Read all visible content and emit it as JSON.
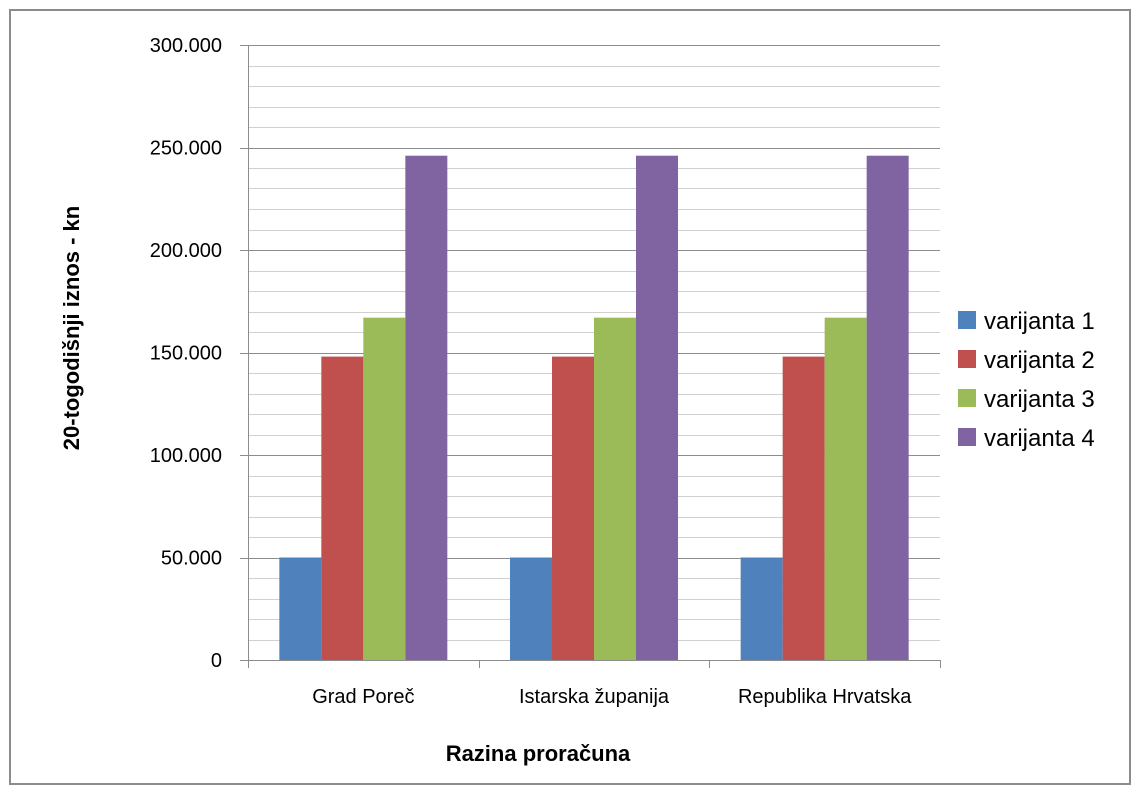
{
  "chart_data": {
    "type": "bar",
    "categories": [
      "Grad Poreč",
      "Istarska županija",
      "Republika Hrvatska"
    ],
    "series": [
      {
        "name": "varijanta 1",
        "values": [
          50000,
          50000,
          50000
        ],
        "color": "#4f81bd"
      },
      {
        "name": "varijanta 2",
        "values": [
          148000,
          148000,
          148000
        ],
        "color": "#c0504d"
      },
      {
        "name": "varijanta 3",
        "values": [
          167000,
          167000,
          167000
        ],
        "color": "#9bbb59"
      },
      {
        "name": "varijanta 4",
        "values": [
          246000,
          246000,
          246000
        ],
        "color": "#8064a2"
      }
    ],
    "xlabel": "Razina proračuna",
    "ylabel": "20-togodišnji iznos - kn",
    "ylim": [
      0,
      300000
    ],
    "yticks": [
      0,
      50000,
      100000,
      150000,
      200000,
      250000,
      300000
    ],
    "ytick_labels": [
      "0",
      "50.000",
      "100.000",
      "150.000",
      "200.000",
      "250.000",
      "300.000"
    ],
    "minor_gridlines": true,
    "grid": true,
    "legend_position": "right"
  }
}
